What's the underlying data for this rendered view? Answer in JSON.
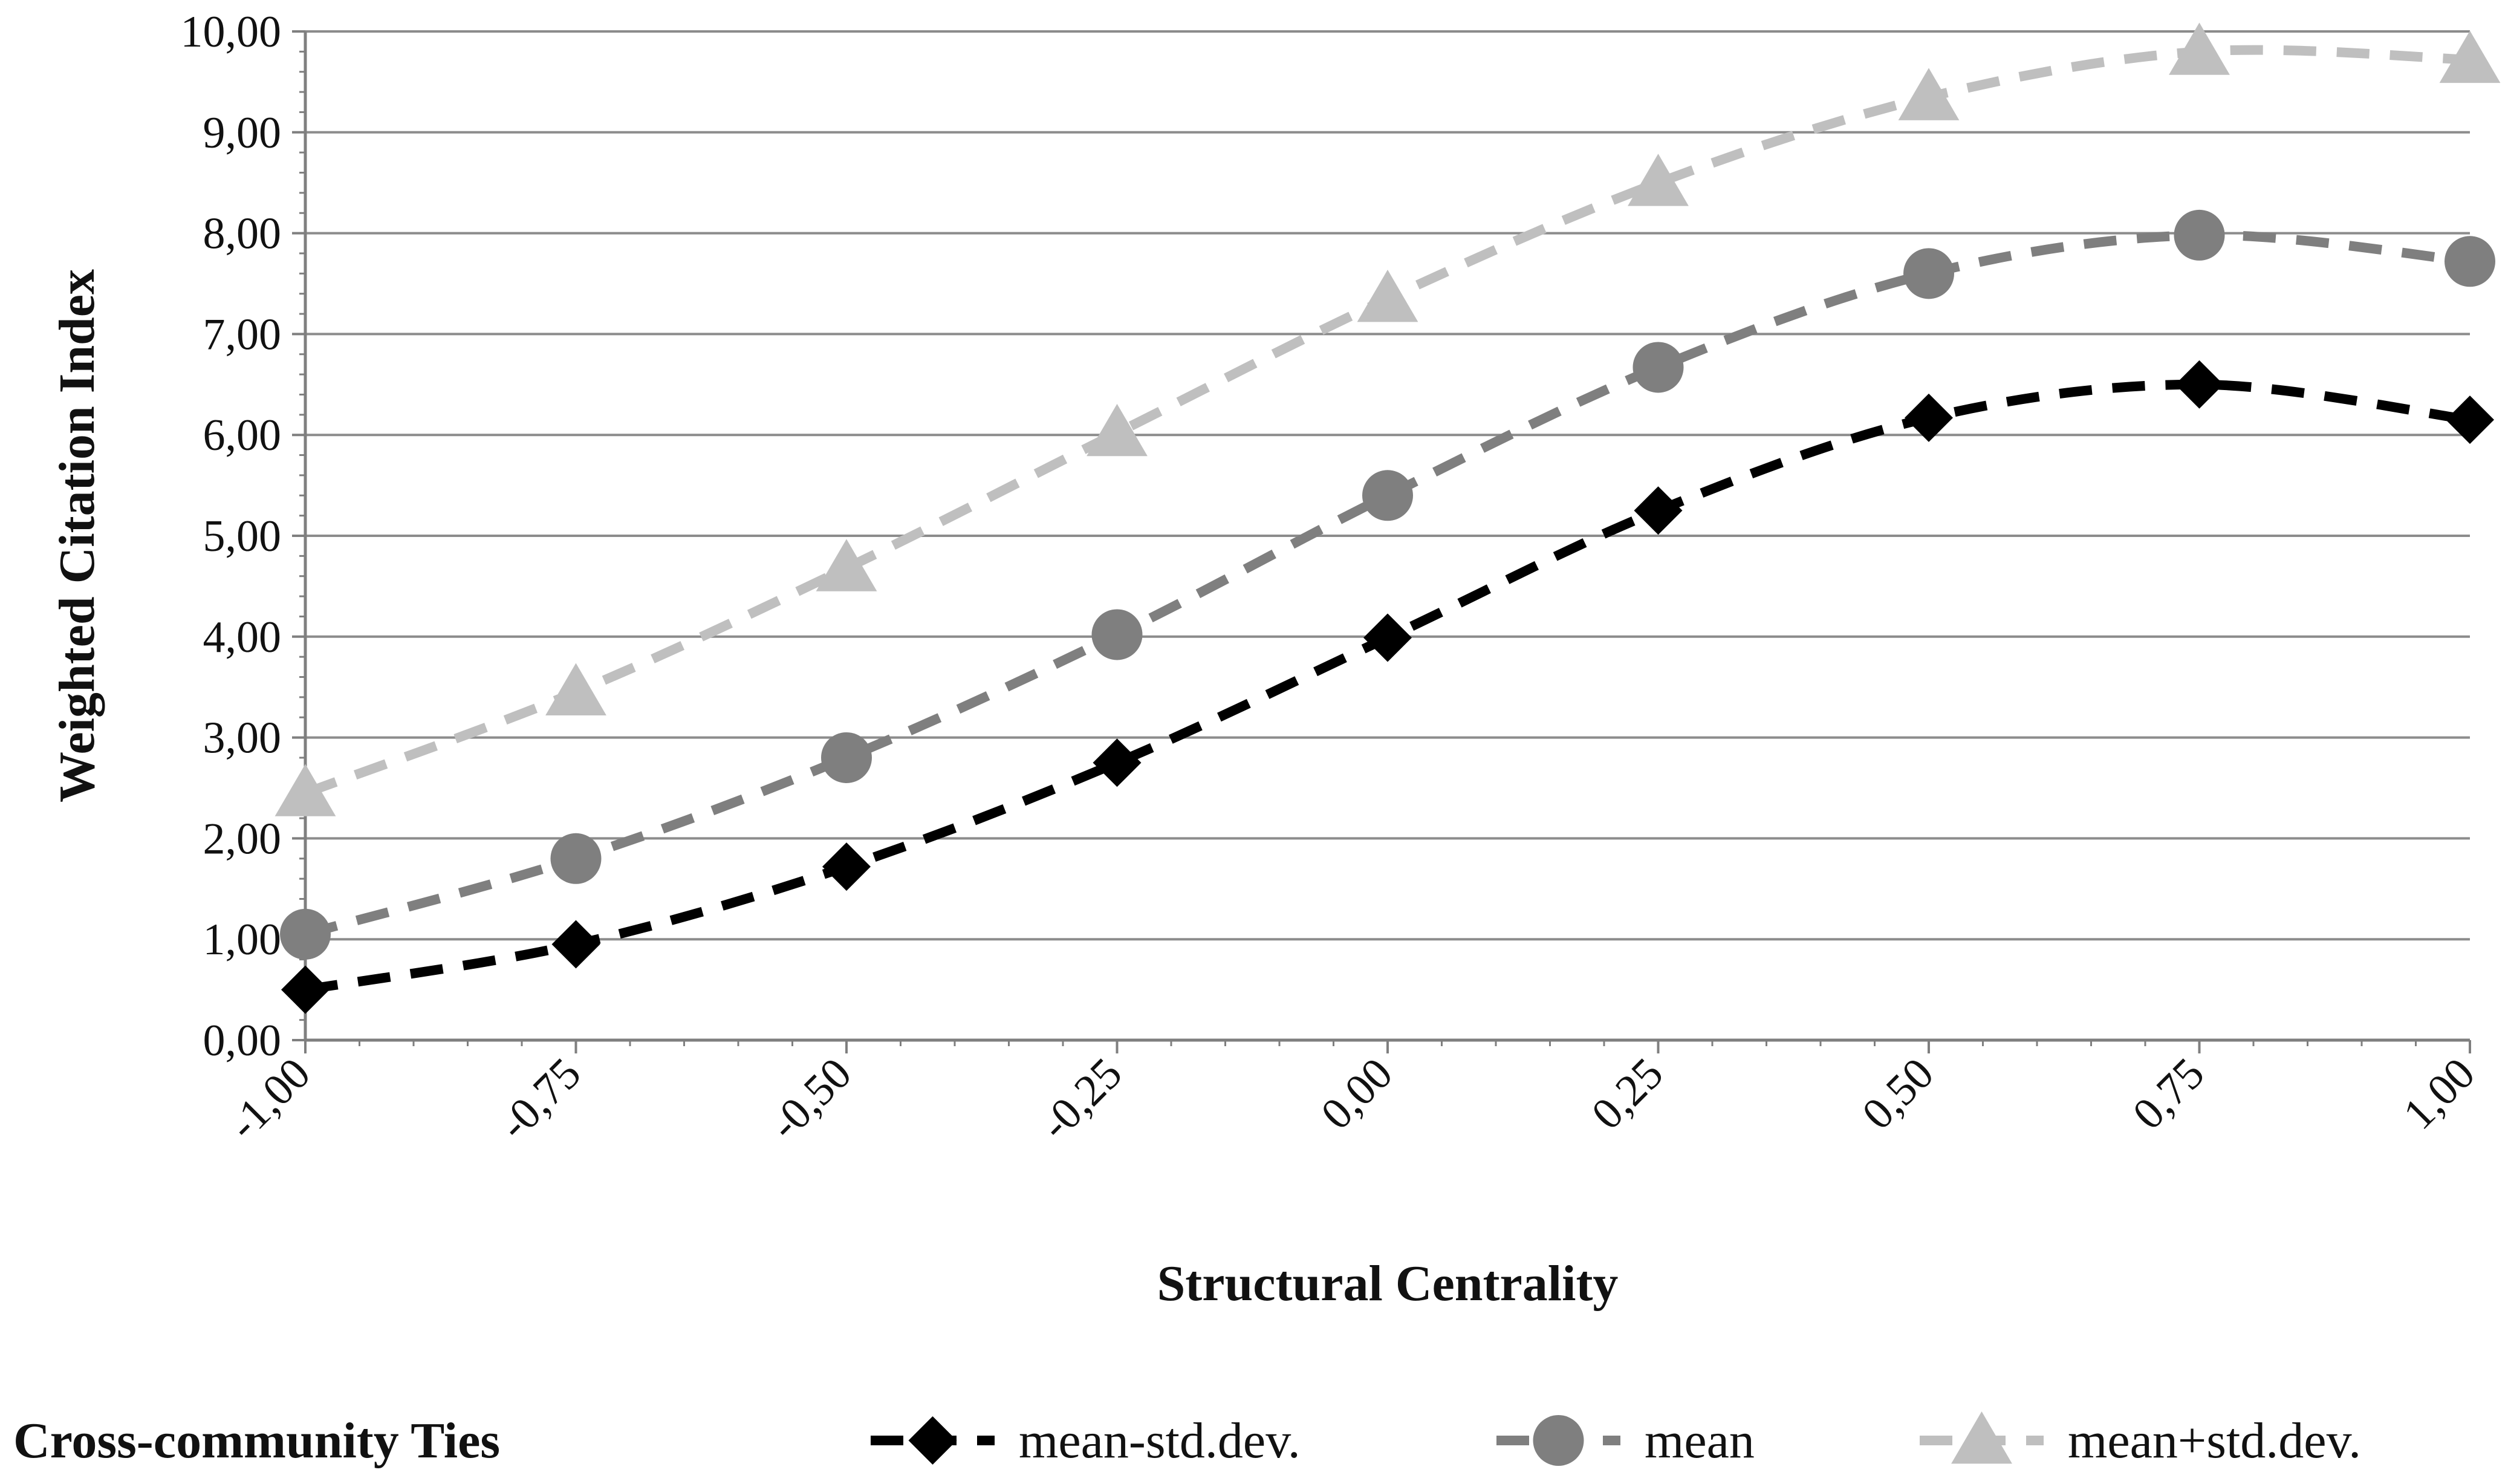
{
  "chart_data": {
    "type": "line",
    "title": "",
    "xlabel": "Structural Centrality",
    "ylabel": "Weighted Citation Index",
    "x": [
      -1.0,
      -0.75,
      -0.5,
      -0.25,
      0.0,
      0.25,
      0.5,
      0.75,
      1.0
    ],
    "x_tick_labels": [
      "-1,00",
      "-0,75",
      "-0,50",
      "-0,25",
      "0,00",
      "0,25",
      "0,50",
      "0,75",
      "1,00"
    ],
    "y_tick_labels": [
      "0,00",
      "1,00",
      "2,00",
      "3,00",
      "4,00",
      "5,00",
      "6,00",
      "7,00",
      "8,00",
      "9,00",
      "10,00"
    ],
    "ylim": [
      0,
      10
    ],
    "xlim": [
      -1,
      1
    ],
    "grid": "horizontal",
    "legend_title": "Cross-community Ties",
    "legend_position": "bottom",
    "series": [
      {
        "name": "mean-std.dev.",
        "marker": "diamond",
        "color": "#000000",
        "values": [
          0.5,
          0.95,
          1.72,
          2.75,
          3.99,
          5.25,
          6.17,
          6.5,
          6.15
        ]
      },
      {
        "name": "mean",
        "marker": "circle",
        "color": "#7f7f7f",
        "values": [
          1.05,
          1.8,
          2.8,
          4.02,
          5.4,
          6.67,
          7.6,
          7.98,
          7.72
        ]
      },
      {
        "name": "mean+std.dev.",
        "marker": "triangle",
        "color": "#bfbfbf",
        "values": [
          2.45,
          3.45,
          4.68,
          6.02,
          7.35,
          8.5,
          9.35,
          9.8,
          9.72
        ]
      }
    ]
  }
}
